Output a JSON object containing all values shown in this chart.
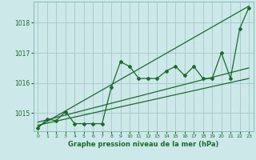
{
  "title": "Graphe pression niveau de la mer (hPa)",
  "background_color": "#cce8e8",
  "grid_color": "#aacccc",
  "line_color": "#1a6b2a",
  "xlim": [
    -0.5,
    23.5
  ],
  "ylim": [
    1014.4,
    1018.7
  ],
  "yticks": [
    1015,
    1016,
    1017,
    1018
  ],
  "xticks": [
    0,
    1,
    2,
    3,
    4,
    5,
    6,
    7,
    8,
    9,
    10,
    11,
    12,
    13,
    14,
    15,
    16,
    17,
    18,
    19,
    20,
    21,
    22,
    23
  ],
  "main_x": [
    0,
    1,
    2,
    3,
    4,
    5,
    6,
    7,
    8,
    9,
    10,
    11,
    12,
    13,
    14,
    15,
    16,
    17,
    18,
    19,
    20,
    21,
    22,
    23
  ],
  "main_y": [
    1014.5,
    1014.8,
    1014.75,
    1015.05,
    1014.65,
    1014.65,
    1014.65,
    1014.65,
    1015.85,
    1016.7,
    1016.55,
    1016.15,
    1016.15,
    1016.15,
    1016.4,
    1016.55,
    1016.25,
    1016.55,
    1016.15,
    1016.15,
    1017.0,
    1016.15,
    1017.8,
    1018.5
  ],
  "trend1_x": [
    0,
    23
  ],
  "trend1_y": [
    1014.6,
    1016.15
  ],
  "trend2_x": [
    0,
    23
  ],
  "trend2_y": [
    1014.7,
    1016.5
  ],
  "trend3_x": [
    0,
    23
  ],
  "trend3_y": [
    1014.55,
    1018.55
  ]
}
